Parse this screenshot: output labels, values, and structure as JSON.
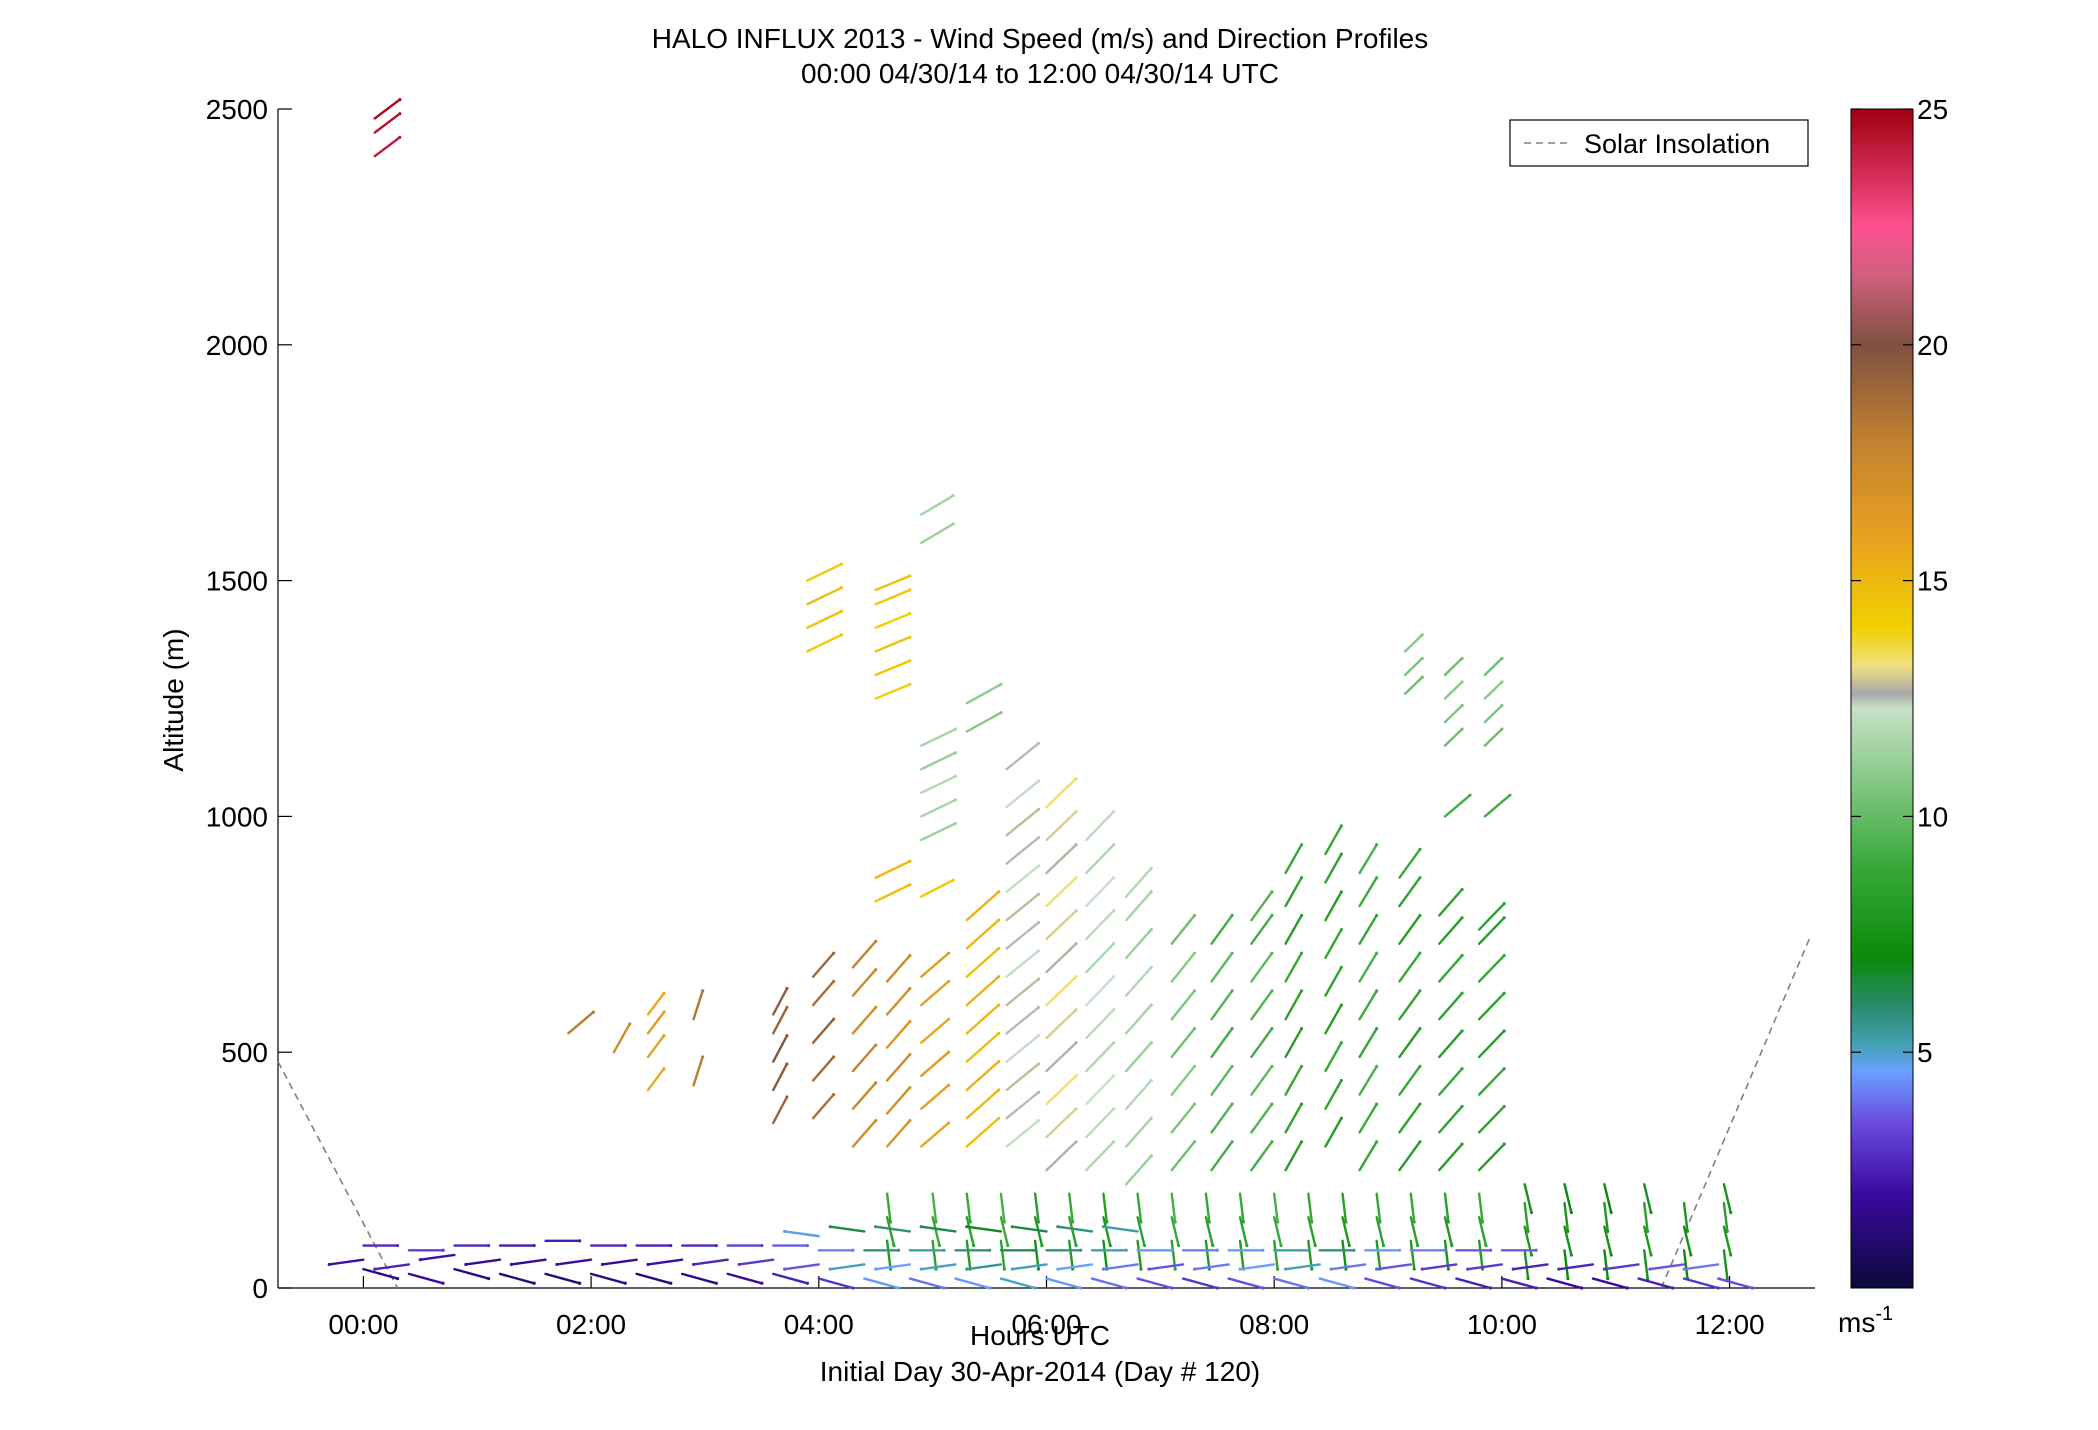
{
  "chart_data": {
    "type": "scatter",
    "title": "HALO INFLUX 2013 - Wind Speed (m/s) and Direction Profiles",
    "subtitle": "00:00 04/30/14 to 12:00 04/30/14  UTC",
    "xlabel": "Hours UTC",
    "xlabel2": "Initial Day 30-Apr-2014 (Day # 120)",
    "ylabel": "Altitude (m)",
    "xlim": [
      -0.75,
      12.75
    ],
    "ylim": [
      0,
      2500
    ],
    "grid": false,
    "x_ticks": [
      0,
      2,
      4,
      6,
      8,
      10,
      12
    ],
    "x_tick_labels": [
      "00:00",
      "02:00",
      "04:00",
      "06:00",
      "08:00",
      "10:00",
      "12:00"
    ],
    "y_ticks": [
      0,
      500,
      1000,
      1500,
      2000,
      2500
    ],
    "y_tick_labels": [
      "0",
      "500",
      "1000",
      "1500",
      "2000",
      "2500"
    ],
    "legend": {
      "position": "top-right",
      "entries": [
        {
          "label": "Solar Insolation",
          "style": "dashed",
          "color": "#808080"
        }
      ]
    },
    "colorbar": {
      "min": 0,
      "max": 25,
      "ticks": [
        5,
        10,
        15,
        20,
        25
      ],
      "tick_labels": [
        "5",
        "10",
        "15",
        "20",
        "25"
      ],
      "unit_label": "ms",
      "unit_exponent": "-1",
      "stops": [
        {
          "v": 0,
          "c": "#0a0a3a"
        },
        {
          "v": 2,
          "c": "#3a0aa0"
        },
        {
          "v": 3.5,
          "c": "#6a4ae0"
        },
        {
          "v": 4.6,
          "c": "#6aa0ff"
        },
        {
          "v": 5.2,
          "c": "#40a0b0"
        },
        {
          "v": 6,
          "c": "#2a8a6a"
        },
        {
          "v": 7,
          "c": "#0a8a0a"
        },
        {
          "v": 9,
          "c": "#3aaa3a"
        },
        {
          "v": 11,
          "c": "#90cc90"
        },
        {
          "v": 12.3,
          "c": "#c8e0c8"
        },
        {
          "v": 12.6,
          "c": "#a8a8a8"
        },
        {
          "v": 13.2,
          "c": "#f0e080"
        },
        {
          "v": 14,
          "c": "#f0d000"
        },
        {
          "v": 16,
          "c": "#e8a020"
        },
        {
          "v": 18,
          "c": "#c08030"
        },
        {
          "v": 20,
          "c": "#805040"
        },
        {
          "v": 21.5,
          "c": "#d06080"
        },
        {
          "v": 22.5,
          "c": "#ff5090"
        },
        {
          "v": 25,
          "c": "#a00010"
        }
      ]
    },
    "solar_insolation": [
      {
        "x": -0.75,
        "y": 480
      },
      {
        "x": 0.3,
        "y": 0
      },
      {
        "x": 11.4,
        "y": 0
      },
      {
        "x": 12.7,
        "y": 740
      }
    ],
    "upper_profiles": [
      {
        "x": 0.1,
        "alt": [
          2400,
          2450,
          2480
        ],
        "speed": 24.5,
        "dx": 0.22,
        "dy": 40
      },
      {
        "x": 3.9,
        "alt": [
          1350,
          1400,
          1450,
          1500
        ],
        "speed": 14.5,
        "dx": 0.3,
        "dy": 35
      },
      {
        "x": 4.5,
        "alt": [
          1250,
          1300,
          1350,
          1400,
          1450,
          1480
        ],
        "speed": 14.3,
        "dx": 0.3,
        "dy": 30
      },
      {
        "x": 4.9,
        "alt": [
          1580,
          1640
        ],
        "speed": 11.5,
        "dx": 0.28,
        "dy": 40
      },
      {
        "x": 5.3,
        "alt": [
          1180,
          1240
        ],
        "speed": 11.0,
        "dx": 0.3,
        "dy": 40
      },
      {
        "x": 9.15,
        "alt": [
          1260,
          1300,
          1350
        ],
        "speed": 10.5,
        "dx": 0.15,
        "dy": 35
      },
      {
        "x": 9.5,
        "alt": [
          1150,
          1200,
          1250,
          1300
        ],
        "speed": 10.5,
        "dx": 0.15,
        "dy": 35
      },
      {
        "x": 9.85,
        "alt": [
          1150,
          1200,
          1250,
          1300
        ],
        "speed": 10.5,
        "dx": 0.15,
        "dy": 35
      },
      {
        "x": 9.5,
        "alt": [
          1000
        ],
        "speed": 9.5,
        "dx": 0.22,
        "dy": 45
      },
      {
        "x": 9.85,
        "alt": [
          1000
        ],
        "speed": 9.5,
        "dx": 0.22,
        "dy": 45
      }
    ],
    "mid_profiles": [
      {
        "x": 1.8,
        "alt": [
          540
        ],
        "speed": 18.5,
        "dx": 0.22,
        "dy": 45
      },
      {
        "x": 2.2,
        "alt": [
          500
        ],
        "speed": 17.5,
        "dx": 0.14,
        "dy": 60
      },
      {
        "x": 2.5,
        "alt": [
          420,
          490,
          540,
          580
        ],
        "speed": 16.0,
        "dx": 0.14,
        "dy": 45
      },
      {
        "x": 2.9,
        "alt": [
          430,
          570
        ],
        "speed": 18.5,
        "dx": 0.08,
        "dy": 60
      },
      {
        "x": 3.6,
        "alt": [
          350,
          420,
          480,
          540,
          580
        ],
        "speed": 19.5,
        "dx": 0.12,
        "dy": 55
      },
      {
        "x": 3.95,
        "alt": [
          360,
          440,
          520,
          600,
          660
        ],
        "speed": 19.0,
        "dx": 0.18,
        "dy": 50
      },
      {
        "x": 4.3,
        "alt": [
          300,
          380,
          460,
          540,
          620,
          680
        ],
        "speed": 17.5,
        "dx": 0.2,
        "dy": 55
      },
      {
        "x": 4.6,
        "alt": [
          300,
          370,
          440,
          510,
          580,
          650
        ],
        "speed": 17.0,
        "dx": 0.2,
        "dy": 55
      },
      {
        "x": 4.9,
        "alt": [
          300,
          380,
          450,
          520,
          600,
          660
        ],
        "speed": 16.0,
        "dx": 0.24,
        "dy": 50
      },
      {
        "x": 4.5,
        "alt": [
          820,
          870
        ],
        "speed": 15.0,
        "dx": 0.3,
        "dy": 35
      },
      {
        "x": 4.9,
        "alt": [
          830
        ],
        "speed": 14.5,
        "dx": 0.28,
        "dy": 35
      },
      {
        "x": 4.9,
        "alt": [
          950,
          1000,
          1050,
          1100,
          1150
        ],
        "speed": 11.5,
        "dx": 0.3,
        "dy": 35
      },
      {
        "x": 5.3,
        "alt": [
          300,
          360,
          420,
          480,
          540,
          600,
          660,
          720,
          780
        ],
        "speed": 15.0,
        "dx": 0.28,
        "dy": 60
      },
      {
        "x": 5.65,
        "alt": [
          300,
          360,
          420,
          480,
          540,
          600,
          660,
          720,
          780,
          840,
          900,
          960,
          1020,
          1100
        ],
        "speed": 12.5,
        "dx": 0.28,
        "dy": 55
      },
      {
        "x": 6.0,
        "alt": [
          250,
          320,
          390,
          460,
          530,
          600,
          670,
          740,
          810,
          880,
          950,
          1020
        ],
        "speed": 13.0,
        "dx": 0.26,
        "dy": 60
      },
      {
        "x": 6.35,
        "alt": [
          250,
          320,
          390,
          460,
          530,
          600,
          670,
          740,
          810,
          880,
          950
        ],
        "speed": 12.0,
        "dx": 0.24,
        "dy": 60
      },
      {
        "x": 6.7,
        "alt": [
          220,
          300,
          380,
          460,
          540,
          620,
          700,
          780,
          830
        ],
        "speed": 11.5,
        "dx": 0.22,
        "dy": 60
      },
      {
        "x": 7.1,
        "alt": [
          250,
          330,
          410,
          490,
          570,
          650,
          730
        ],
        "speed": 10.5,
        "dx": 0.2,
        "dy": 60
      },
      {
        "x": 7.45,
        "alt": [
          250,
          330,
          410,
          490,
          570,
          650,
          730
        ],
        "speed": 9.5,
        "dx": 0.18,
        "dy": 60
      },
      {
        "x": 7.8,
        "alt": [
          250,
          330,
          410,
          490,
          570,
          650,
          730,
          780
        ],
        "speed": 9.5,
        "dx": 0.18,
        "dy": 60
      },
      {
        "x": 8.1,
        "alt": [
          250,
          330,
          410,
          490,
          570,
          650,
          730,
          810,
          880
        ],
        "speed": 8.5,
        "dx": 0.14,
        "dy": 60
      },
      {
        "x": 8.45,
        "alt": [
          300,
          380,
          460,
          540,
          620,
          700,
          780,
          860,
          920
        ],
        "speed": 8.5,
        "dx": 0.14,
        "dy": 60
      },
      {
        "x": 8.75,
        "alt": [
          250,
          330,
          410,
          490,
          570,
          650,
          730,
          810,
          880
        ],
        "speed": 9.0,
        "dx": 0.15,
        "dy": 60
      },
      {
        "x": 9.1,
        "alt": [
          250,
          330,
          410,
          490,
          570,
          650,
          730,
          810,
          870
        ],
        "speed": 8.5,
        "dx": 0.18,
        "dy": 60
      },
      {
        "x": 9.45,
        "alt": [
          250,
          330,
          410,
          490,
          570,
          650,
          730,
          790
        ],
        "speed": 8.5,
        "dx": 0.2,
        "dy": 55
      },
      {
        "x": 9.8,
        "alt": [
          250,
          330,
          410,
          490,
          570,
          650,
          730,
          760
        ],
        "speed": 8.5,
        "dx": 0.22,
        "dy": 55
      }
    ],
    "surface_profiles": [
      {
        "x": 0.0,
        "alt": [
          40,
          60,
          90
        ],
        "speed": 1.5
      },
      {
        "x": 0.4,
        "alt": [
          30,
          50,
          80
        ],
        "speed": 2.0
      },
      {
        "x": 0.8,
        "alt": [
          40,
          70,
          90
        ],
        "speed": 1.5
      },
      {
        "x": 1.2,
        "alt": [
          30,
          60,
          90
        ],
        "speed": 1.2
      },
      {
        "x": 1.6,
        "alt": [
          30,
          60,
          100
        ],
        "speed": 1.2
      },
      {
        "x": 2.0,
        "alt": [
          30,
          60,
          90
        ],
        "speed": 1.5
      },
      {
        "x": 2.4,
        "alt": [
          30,
          60,
          90
        ],
        "speed": 1.3
      },
      {
        "x": 2.8,
        "alt": [
          30,
          60,
          90
        ],
        "speed": 1.5
      },
      {
        "x": 3.2,
        "alt": [
          30,
          60,
          90
        ],
        "speed": 2.0
      },
      {
        "x": 3.6,
        "alt": [
          30,
          60,
          90
        ],
        "speed": 2.5
      },
      {
        "x": 4.0,
        "alt": [
          20,
          50,
          80,
          110
        ],
        "speed": 3.0
      },
      {
        "x": 4.4,
        "alt": [
          20,
          50,
          80,
          120
        ],
        "speed": 4.5
      },
      {
        "x": 4.8,
        "alt": [
          20,
          50,
          80,
          120
        ],
        "speed": 4.0
      },
      {
        "x": 5.2,
        "alt": [
          20,
          50,
          80,
          120
        ],
        "speed": 4.5
      },
      {
        "x": 5.6,
        "alt": [
          20,
          50,
          80,
          120
        ],
        "speed": 5.0
      },
      {
        "x": 6.0,
        "alt": [
          20,
          50,
          80,
          120
        ],
        "speed": 4.5
      },
      {
        "x": 6.4,
        "alt": [
          20,
          50,
          80,
          120
        ],
        "speed": 4.0
      },
      {
        "x": 6.8,
        "alt": [
          20,
          50,
          80,
          120
        ],
        "speed": 3.5
      },
      {
        "x": 7.2,
        "alt": [
          20,
          50,
          80
        ],
        "speed": 3.0
      },
      {
        "x": 7.6,
        "alt": [
          20,
          50,
          80
        ],
        "speed": 3.5
      },
      {
        "x": 8.0,
        "alt": [
          20,
          50,
          80
        ],
        "speed": 4.0
      },
      {
        "x": 8.4,
        "alt": [
          20,
          50,
          80
        ],
        "speed": 4.5
      },
      {
        "x": 8.8,
        "alt": [
          20,
          50,
          80
        ],
        "speed": 3.5
      },
      {
        "x": 9.2,
        "alt": [
          20,
          50,
          80
        ],
        "speed": 3.0
      },
      {
        "x": 9.6,
        "alt": [
          20,
          50,
          80
        ],
        "speed": 2.5
      },
      {
        "x": 10.0,
        "alt": [
          20,
          50,
          80
        ],
        "speed": 2.5
      },
      {
        "x": 10.4,
        "alt": [
          20,
          50
        ],
        "speed": 2.0
      },
      {
        "x": 10.8,
        "alt": [
          20,
          50
        ],
        "speed": 2.0
      },
      {
        "x": 11.2,
        "alt": [
          20,
          50
        ],
        "speed": 2.5
      },
      {
        "x": 11.6,
        "alt": [
          20,
          50
        ],
        "speed": 3.0
      },
      {
        "x": 11.9,
        "alt": [
          20,
          50
        ],
        "speed": 3.5
      }
    ],
    "near_surface_green": [
      {
        "x": 4.6,
        "alt": [
          100,
          150,
          200
        ],
        "speed": 8.0
      },
      {
        "x": 5.0,
        "alt": [
          100,
          150,
          200
        ],
        "speed": 8.5
      },
      {
        "x": 5.3,
        "alt": [
          100,
          150,
          200
        ],
        "speed": 8.0
      },
      {
        "x": 5.6,
        "alt": [
          100,
          150,
          200
        ],
        "speed": 8.5
      },
      {
        "x": 5.9,
        "alt": [
          100,
          150,
          200
        ],
        "speed": 7.5
      },
      {
        "x": 6.2,
        "alt": [
          100,
          150,
          200
        ],
        "speed": 8.0
      },
      {
        "x": 6.5,
        "alt": [
          100,
          150,
          200
        ],
        "speed": 7.5
      },
      {
        "x": 6.8,
        "alt": [
          100,
          150,
          200
        ],
        "speed": 8.0
      },
      {
        "x": 7.1,
        "alt": [
          100,
          150,
          200
        ],
        "speed": 8.5
      },
      {
        "x": 7.4,
        "alt": [
          100,
          150,
          200
        ],
        "speed": 8.0
      },
      {
        "x": 7.7,
        "alt": [
          100,
          150,
          200
        ],
        "speed": 8.0
      },
      {
        "x": 8.0,
        "alt": [
          100,
          150,
          200
        ],
        "speed": 8.5
      },
      {
        "x": 8.3,
        "alt": [
          100,
          150,
          200
        ],
        "speed": 8.0
      },
      {
        "x": 8.6,
        "alt": [
          100,
          150,
          200
        ],
        "speed": 7.5
      },
      {
        "x": 8.9,
        "alt": [
          100,
          150,
          200
        ],
        "speed": 8.0
      },
      {
        "x": 9.2,
        "alt": [
          100,
          150,
          200
        ],
        "speed": 8.0
      },
      {
        "x": 9.5,
        "alt": [
          100,
          150,
          200
        ],
        "speed": 7.5
      },
      {
        "x": 9.8,
        "alt": [
          100,
          150,
          200
        ],
        "speed": 8.0
      },
      {
        "x": 10.2,
        "alt": [
          80,
          130,
          180,
          220
        ],
        "speed": 7.5
      },
      {
        "x": 10.55,
        "alt": [
          80,
          130,
          180,
          220
        ],
        "speed": 7.0
      },
      {
        "x": 10.9,
        "alt": [
          80,
          130,
          180,
          220
        ],
        "speed": 7.0
      },
      {
        "x": 11.25,
        "alt": [
          80,
          130,
          180,
          220
        ],
        "speed": 7.5
      },
      {
        "x": 11.6,
        "alt": [
          80,
          130,
          180
        ],
        "speed": 7.0
      },
      {
        "x": 11.95,
        "alt": [
          80,
          130,
          180,
          220
        ],
        "speed": 7.5
      }
    ]
  }
}
